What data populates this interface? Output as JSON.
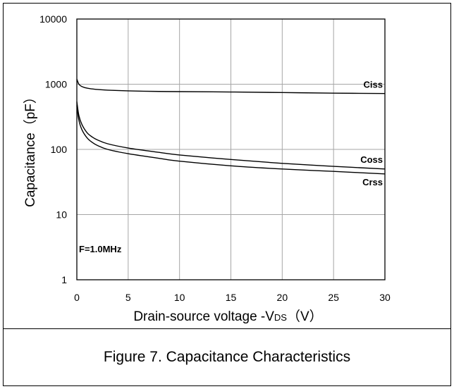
{
  "caption": "Figure 7. Capacitance Characteristics",
  "chart_data": {
    "type": "line",
    "title": "",
    "xlabel": "Drain-source voltage -VDS（V）",
    "xlabel_main": "Drain-source voltage -V",
    "xlabel_sub": "DS",
    "xlabel_unit": "（V）",
    "ylabel": "Capacitance（pF）",
    "xlim": [
      0,
      30
    ],
    "ylim": [
      1,
      10000
    ],
    "y_scale": "log",
    "grid": true,
    "x_ticks": [
      "0",
      "5",
      "10",
      "15",
      "20",
      "25",
      "30"
    ],
    "y_ticks": [
      "1",
      "10",
      "100",
      "1000",
      "10000"
    ],
    "annotation": "F=1.0MHz",
    "series": [
      {
        "name": "Ciss",
        "x": [
          0,
          0.2,
          0.5,
          1,
          2,
          3,
          5,
          8,
          10,
          15,
          20,
          25,
          30
        ],
        "values": [
          1200,
          1000,
          920,
          870,
          830,
          810,
          790,
          775,
          770,
          760,
          745,
          730,
          720
        ]
      },
      {
        "name": "Coss",
        "x": [
          0,
          0.2,
          0.5,
          1,
          1.5,
          2,
          3,
          5,
          8,
          10,
          15,
          20,
          25,
          30
        ],
        "values": [
          540,
          330,
          240,
          180,
          155,
          140,
          122,
          105,
          90,
          82,
          70,
          61,
          55,
          50
        ]
      },
      {
        "name": "Crss",
        "x": [
          0,
          0.2,
          0.5,
          1,
          1.5,
          2,
          3,
          5,
          8,
          10,
          15,
          20,
          25,
          30
        ],
        "values": [
          470,
          280,
          200,
          150,
          128,
          115,
          100,
          86,
          73,
          66,
          56,
          50,
          46,
          42
        ]
      }
    ]
  }
}
